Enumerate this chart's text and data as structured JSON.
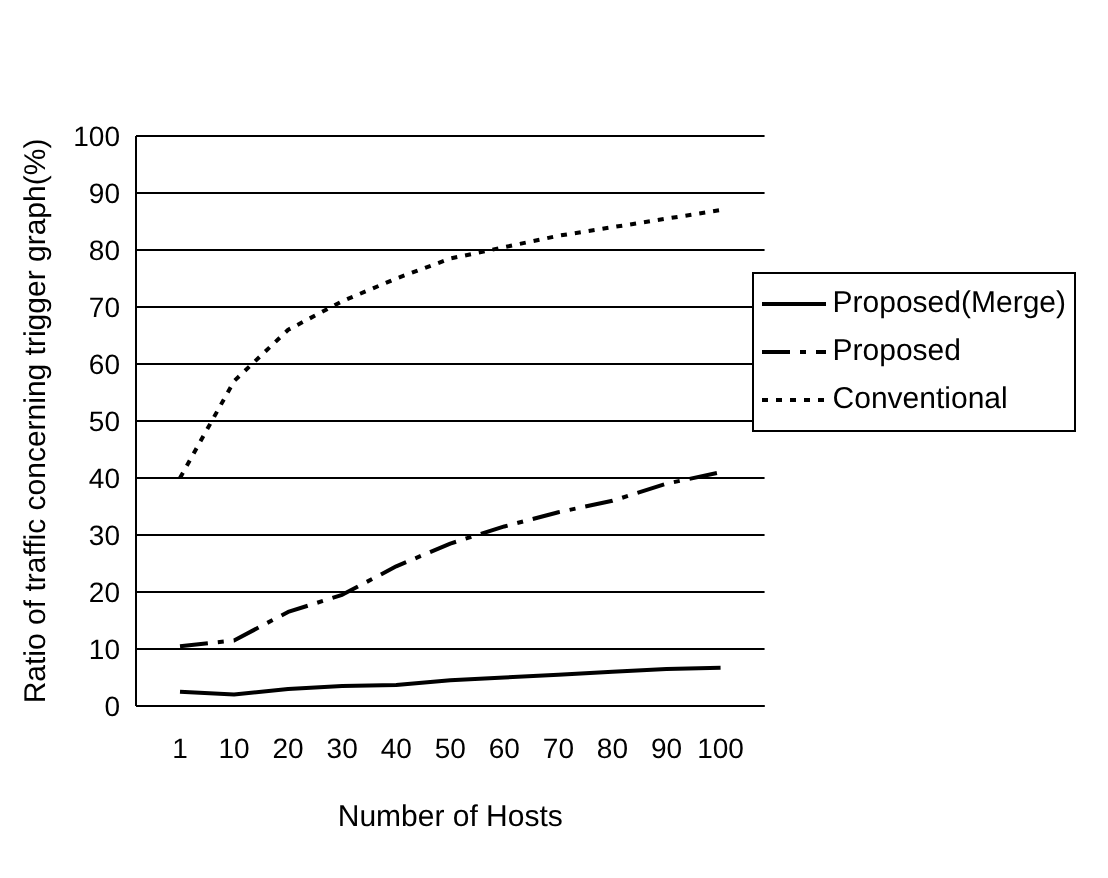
{
  "chart_data": {
    "type": "line",
    "xlabel": "Number of Hosts",
    "ylabel": "Ratio of traffic concerning trigger graph(%)",
    "categories": [
      "1",
      "10",
      "20",
      "30",
      "40",
      "50",
      "60",
      "70",
      "80",
      "90",
      "100"
    ],
    "series": [
      {
        "name": "Proposed(Merge)",
        "color": "#000000",
        "line_style": "solid",
        "values": [
          2.5,
          2,
          3,
          3.5,
          3.7,
          4.5,
          5,
          5.5,
          6,
          6.5,
          6.7
        ]
      },
      {
        "name": "Proposed",
        "color": "#000000",
        "line_style": "dashed",
        "values": [
          10.5,
          11.5,
          16.5,
          19.5,
          24.5,
          28.5,
          31.5,
          34,
          36,
          39,
          41
        ]
      },
      {
        "name": "Conventional",
        "color": "#000000",
        "line_style": "dotted",
        "values": [
          40,
          57,
          66,
          71,
          75,
          78.5,
          80.5,
          82.5,
          84,
          85.5,
          87
        ]
      }
    ],
    "ylim": [
      0,
      100
    ],
    "yticks": [
      0,
      10,
      20,
      30,
      40,
      50,
      60,
      70,
      80,
      90,
      100
    ],
    "grid": "y",
    "legend": "right",
    "marker": "none"
  }
}
